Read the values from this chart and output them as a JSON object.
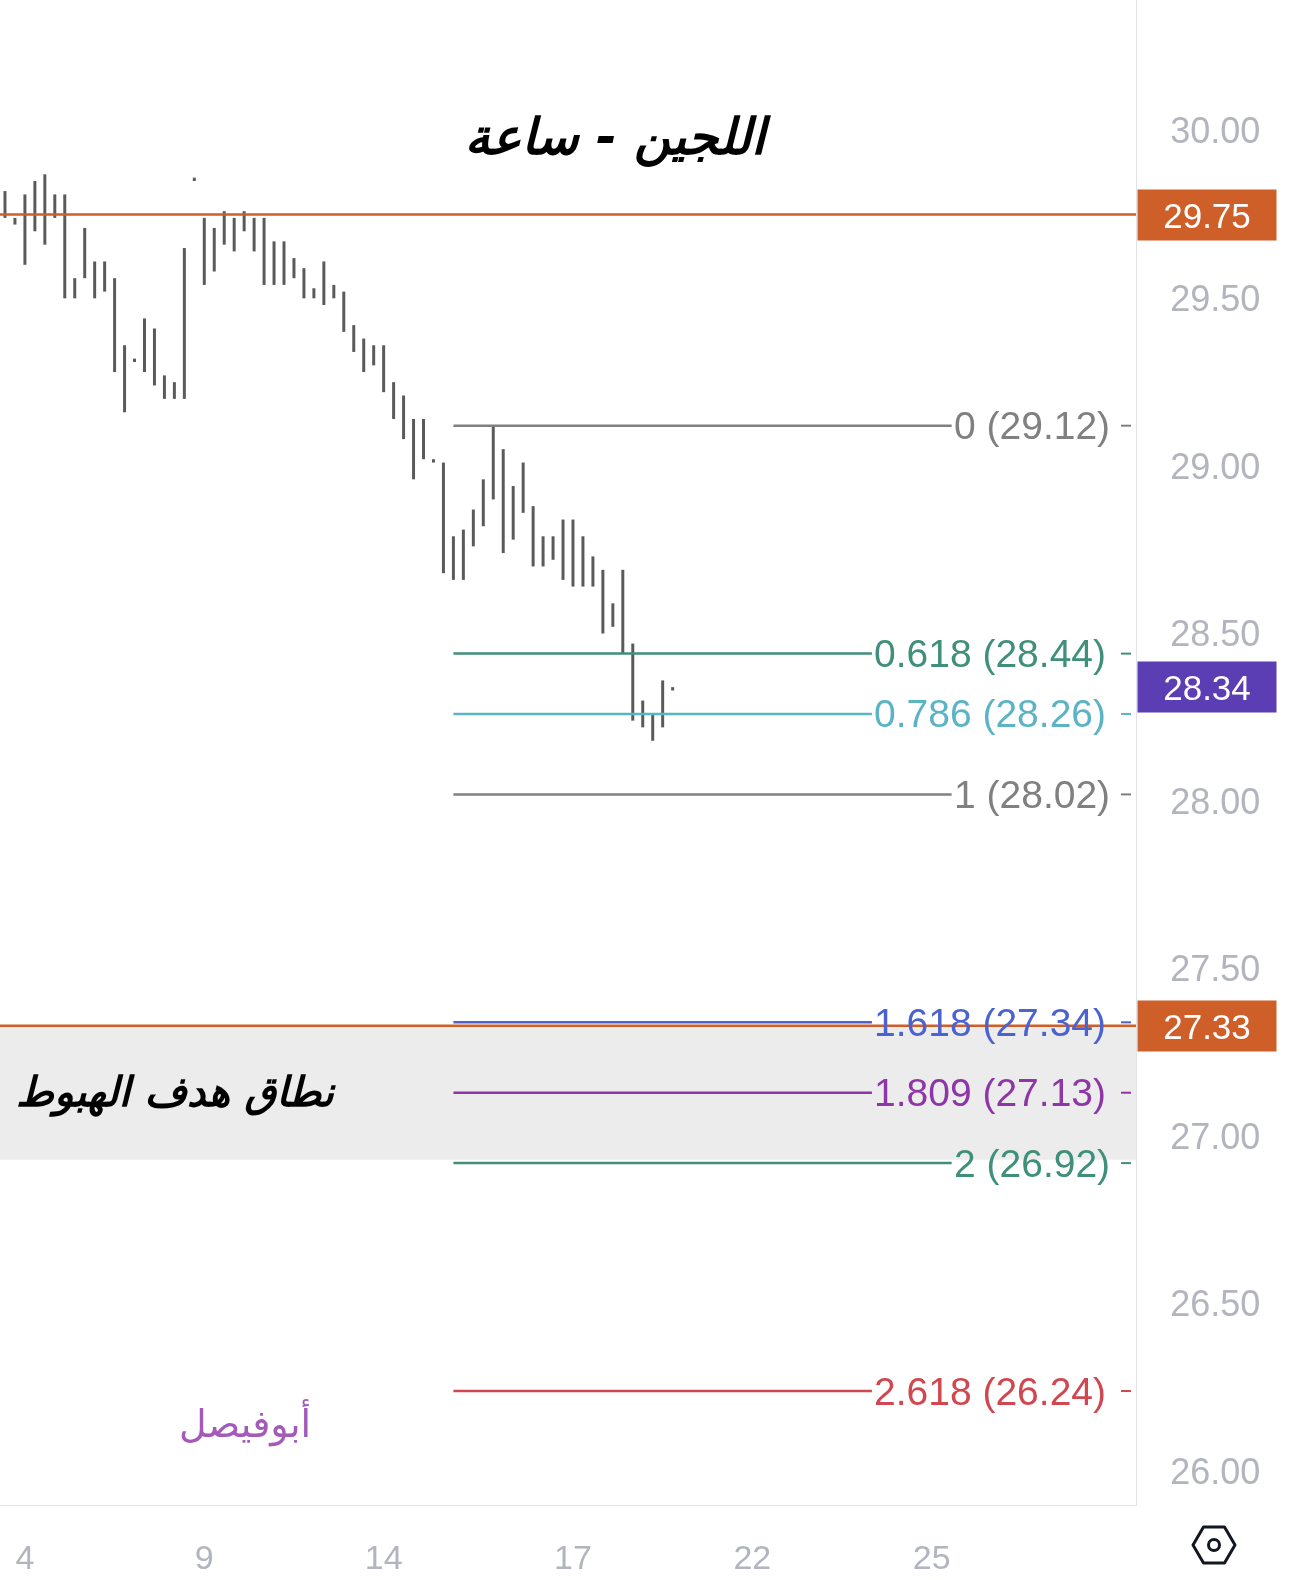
{
  "chart_data": {
    "type": "bar",
    "title": "اللجين - ساعة",
    "categories": [
      null,
      null,
      "4",
      null,
      null,
      null,
      null,
      null,
      null,
      null,
      null,
      null,
      null,
      null,
      null,
      null,
      null,
      null,
      null,
      null,
      "9",
      null,
      null,
      null,
      null,
      null,
      null,
      null,
      null,
      null,
      null,
      null,
      null,
      null,
      null,
      null,
      null,
      null,
      "14",
      null,
      null,
      null,
      null,
      null,
      null,
      null,
      null,
      null,
      null,
      null,
      null,
      null,
      null,
      null,
      null,
      null,
      null,
      "17",
      null,
      null,
      null,
      null,
      null,
      null,
      null,
      null,
      null,
      null,
      null,
      null,
      null,
      null,
      null,
      null,
      null,
      "22",
      null,
      null,
      null,
      null,
      null,
      null,
      null,
      null,
      null,
      null,
      null,
      null,
      null,
      null,
      null,
      null,
      null,
      "25",
      null,
      null,
      null,
      null,
      null,
      null,
      null,
      null,
      null,
      null,
      null,
      null,
      null,
      null,
      null,
      null,
      null,
      null,
      null,
      null
    ],
    "ylim": [
      25.9,
      30.39
    ],
    "yticks": [
      {
        "value": 26,
        "label": "26.00"
      },
      {
        "value": 26.5,
        "label": "26.50"
      },
      {
        "value": 27,
        "label": "27.00"
      },
      {
        "value": 27.5,
        "label": "27.50"
      },
      {
        "value": 28,
        "label": "28.00"
      },
      {
        "value": 28.5,
        "label": "28.50"
      },
      {
        "value": 29,
        "label": "29.00"
      },
      {
        "value": 29.5,
        "label": "29.50"
      },
      {
        "value": 30,
        "label": "30.00"
      }
    ],
    "legend": "right",
    "series": [
      {
        "color": "#5a5a5a",
        "base": [
          29.74,
          29.72,
          29.6,
          29.7,
          29.66,
          29.74,
          29.5,
          29.5,
          29.56,
          29.5,
          29.52,
          29.28,
          29.16,
          29.31,
          29.28,
          29.24,
          29.2,
          29.2,
          29.2,
          29.85,
          29.54,
          29.58,
          29.66,
          29.64,
          29.7,
          29.64,
          29.54,
          29.54,
          29.54,
          29.56,
          29.5,
          29.5,
          29.48,
          29.5,
          29.4,
          29.34,
          29.28,
          29.3,
          29.22,
          29.14,
          29.08,
          28.96,
          29.02,
          29.01,
          28.68,
          28.66,
          28.66,
          28.76,
          28.82,
          28.9,
          28.74,
          28.78,
          28.86,
          28.7,
          28.7,
          28.72,
          28.66,
          28.64,
          28.64,
          28.64,
          28.5,
          28.52,
          28.44,
          28.24,
          28.22,
          28.18,
          28.22,
          28.33,
          null,
          null,
          null,
          null,
          null,
          null,
          null,
          null,
          null,
          null,
          null,
          null,
          null,
          null,
          null,
          null,
          null,
          null,
          null,
          null,
          null,
          null,
          null,
          null,
          null,
          null,
          null,
          null,
          null,
          null,
          null,
          null,
          null,
          null,
          null,
          null,
          null,
          null,
          null,
          null,
          null,
          null,
          null,
          null,
          null,
          null
        ],
        "values": [
          0.08,
          0.02,
          0.21,
          0.15,
          0.21,
          0.07,
          0.31,
          0.06,
          0.15,
          0.11,
          0.09,
          0.28,
          0.2,
          0.01,
          0.16,
          0.17,
          0.07,
          0.05,
          0.45,
          0.01,
          0.2,
          0.13,
          0.1,
          0.1,
          0.06,
          0.1,
          0.2,
          0.13,
          0.13,
          0.06,
          0.09,
          0.03,
          0.13,
          0.04,
          0.12,
          0.08,
          0.1,
          0.06,
          0.14,
          0.11,
          0.13,
          0.18,
          0.12,
          0.01,
          0.33,
          0.13,
          0.15,
          0.11,
          0.14,
          0.22,
          0.31,
          0.16,
          0.15,
          0.18,
          0.09,
          0.07,
          0.18,
          0.2,
          0.15,
          0.09,
          0.19,
          0.07,
          0.25,
          0.23,
          0.08,
          0.08,
          0.14,
          0.01,
          null,
          null,
          null,
          null,
          null,
          null,
          null,
          null,
          null,
          null,
          null,
          null,
          null,
          null,
          null,
          null,
          null,
          null,
          null,
          null,
          null,
          null,
          null,
          null,
          null,
          null,
          null,
          null,
          null,
          null,
          null,
          null,
          null,
          null,
          null,
          null,
          null,
          null,
          null,
          null,
          null,
          null,
          null,
          null,
          null,
          null
        ]
      },
      {
        "type": "line",
        "name": "0 (29.12)",
        "color": "#808080",
        "values": [
          null,
          null,
          null,
          null,
          null,
          null,
          null,
          null,
          null,
          null,
          null,
          null,
          null,
          null,
          null,
          null,
          null,
          null,
          null,
          null,
          null,
          null,
          null,
          null,
          null,
          null,
          null,
          null,
          null,
          null,
          null,
          null,
          null,
          null,
          null,
          null,
          null,
          null,
          null,
          null,
          null,
          null,
          null,
          null,
          null,
          29.12,
          29.12,
          29.12,
          29.12,
          29.12,
          29.12,
          29.12,
          29.12,
          29.12,
          29.12,
          29.12,
          29.12,
          29.12,
          29.12,
          29.12,
          29.12,
          29.12,
          29.12,
          29.12,
          29.12,
          29.12,
          29.12,
          29.12,
          29.12,
          29.12,
          29.12,
          29.12,
          29.12,
          29.12,
          29.12,
          29.12,
          29.12,
          29.12,
          29.12,
          29.12,
          29.12,
          29.12,
          29.12,
          29.12,
          29.12,
          29.12,
          29.12,
          29.12,
          29.12,
          29.12,
          29.12,
          29.12,
          29.12,
          29.12,
          29.12,
          29.12,
          null,
          null,
          null,
          null,
          null,
          null,
          null,
          null,
          null,
          null,
          null,
          null,
          null,
          null,
          null,
          null,
          null,
          null
        ]
      },
      {
        "type": "line",
        "name": "0.618 (28.44)",
        "color": "#3f8f7a",
        "values": [
          null,
          null,
          null,
          null,
          null,
          null,
          null,
          null,
          null,
          null,
          null,
          null,
          null,
          null,
          null,
          null,
          null,
          null,
          null,
          null,
          null,
          null,
          null,
          null,
          null,
          null,
          null,
          null,
          null,
          null,
          null,
          null,
          null,
          null,
          null,
          null,
          null,
          null,
          null,
          null,
          null,
          null,
          null,
          null,
          null,
          28.44,
          28.44,
          28.44,
          28.44,
          28.44,
          28.44,
          28.44,
          28.44,
          28.44,
          28.44,
          28.44,
          28.44,
          28.44,
          28.44,
          28.44,
          28.44,
          28.44,
          28.44,
          28.44,
          28.44,
          28.44,
          28.44,
          28.44,
          28.44,
          28.44,
          28.44,
          28.44,
          28.44,
          28.44,
          28.44,
          28.44,
          28.44,
          28.44,
          28.44,
          28.44,
          28.44,
          28.44,
          28.44,
          28.44,
          28.44,
          28.44,
          28.44,
          28.44,
          null,
          null,
          null,
          null,
          null,
          null,
          null,
          null,
          null,
          null,
          null,
          null,
          null,
          null,
          null,
          null,
          null,
          null,
          null,
          null,
          null,
          null,
          null,
          null,
          null,
          null
        ]
      },
      {
        "type": "line",
        "name": "0.786 (28.26)",
        "color": "#5bb3c6",
        "values": [
          null,
          null,
          null,
          null,
          null,
          null,
          null,
          null,
          null,
          null,
          null,
          null,
          null,
          null,
          null,
          null,
          null,
          null,
          null,
          null,
          null,
          null,
          null,
          null,
          null,
          null,
          null,
          null,
          null,
          null,
          null,
          null,
          null,
          null,
          null,
          null,
          null,
          null,
          null,
          null,
          null,
          null,
          null,
          null,
          null,
          28.26,
          28.26,
          28.26,
          28.26,
          28.26,
          28.26,
          28.26,
          28.26,
          28.26,
          28.26,
          28.26,
          28.26,
          28.26,
          28.26,
          28.26,
          28.26,
          28.26,
          28.26,
          28.26,
          28.26,
          28.26,
          28.26,
          28.26,
          28.26,
          28.26,
          28.26,
          28.26,
          28.26,
          28.26,
          28.26,
          28.26,
          28.26,
          28.26,
          28.26,
          28.26,
          28.26,
          28.26,
          28.26,
          28.26,
          28.26,
          28.26,
          28.26,
          28.26,
          null,
          null,
          null,
          null,
          null,
          null,
          null,
          null,
          null,
          null,
          null,
          null,
          null,
          null,
          null,
          null,
          null,
          null,
          null,
          null,
          null,
          null,
          null,
          null,
          null,
          null
        ]
      },
      {
        "type": "line",
        "name": "1 (28.02)",
        "color": "#808080",
        "values": [
          null,
          null,
          null,
          null,
          null,
          null,
          null,
          null,
          null,
          null,
          null,
          null,
          null,
          null,
          null,
          null,
          null,
          null,
          null,
          null,
          null,
          null,
          null,
          null,
          null,
          null,
          null,
          null,
          null,
          null,
          null,
          null,
          null,
          null,
          null,
          null,
          null,
          null,
          null,
          null,
          null,
          null,
          null,
          null,
          null,
          28.02,
          28.02,
          28.02,
          28.02,
          28.02,
          28.02,
          28.02,
          28.02,
          28.02,
          28.02,
          28.02,
          28.02,
          28.02,
          28.02,
          28.02,
          28.02,
          28.02,
          28.02,
          28.02,
          28.02,
          28.02,
          28.02,
          28.02,
          28.02,
          28.02,
          28.02,
          28.02,
          28.02,
          28.02,
          28.02,
          28.02,
          28.02,
          28.02,
          28.02,
          28.02,
          28.02,
          28.02,
          28.02,
          28.02,
          28.02,
          28.02,
          28.02,
          28.02,
          28.02,
          28.02,
          28.02,
          28.02,
          28.02,
          28.02,
          28.02,
          28.02,
          null,
          null,
          null,
          null,
          null,
          null,
          null,
          null,
          null,
          null,
          null,
          null,
          null,
          null,
          null,
          null,
          null,
          null
        ]
      },
      {
        "type": "line",
        "name": "1.618 (27.34)",
        "color": "#4a63d0",
        "values": [
          null,
          null,
          null,
          null,
          null,
          null,
          null,
          null,
          null,
          null,
          null,
          null,
          null,
          null,
          null,
          null,
          null,
          null,
          null,
          null,
          null,
          null,
          null,
          null,
          null,
          null,
          null,
          null,
          null,
          null,
          null,
          null,
          null,
          null,
          null,
          null,
          null,
          null,
          null,
          null,
          null,
          null,
          null,
          null,
          null,
          27.34,
          27.34,
          27.34,
          27.34,
          27.34,
          27.34,
          27.34,
          27.34,
          27.34,
          27.34,
          27.34,
          27.34,
          27.34,
          27.34,
          27.34,
          27.34,
          27.34,
          27.34,
          27.34,
          27.34,
          27.34,
          27.34,
          27.34,
          27.34,
          27.34,
          27.34,
          27.34,
          27.34,
          27.34,
          27.34,
          27.34,
          27.34,
          27.34,
          27.34,
          27.34,
          27.34,
          27.34,
          27.34,
          27.34,
          27.34,
          27.34,
          27.34,
          27.34,
          null,
          null,
          null,
          null,
          null,
          null,
          null,
          null,
          null,
          null,
          null,
          null,
          null,
          null,
          null,
          null,
          null,
          null,
          null,
          null,
          null,
          null,
          null,
          null,
          null,
          null
        ]
      },
      {
        "type": "line",
        "name": "1.809 (27.13)",
        "color": "#8e36a8",
        "values": [
          null,
          null,
          null,
          null,
          null,
          null,
          null,
          null,
          null,
          null,
          null,
          null,
          null,
          null,
          null,
          null,
          null,
          null,
          null,
          null,
          null,
          null,
          null,
          null,
          null,
          null,
          null,
          null,
          null,
          null,
          null,
          null,
          null,
          null,
          null,
          null,
          null,
          null,
          null,
          null,
          null,
          null,
          null,
          null,
          null,
          27.13,
          27.13,
          27.13,
          27.13,
          27.13,
          27.13,
          27.13,
          27.13,
          27.13,
          27.13,
          27.13,
          27.13,
          27.13,
          27.13,
          27.13,
          27.13,
          27.13,
          27.13,
          27.13,
          27.13,
          27.13,
          27.13,
          27.13,
          27.13,
          27.13,
          27.13,
          27.13,
          27.13,
          27.13,
          27.13,
          27.13,
          27.13,
          27.13,
          27.13,
          27.13,
          27.13,
          27.13,
          27.13,
          27.13,
          27.13,
          27.13,
          27.13,
          27.13,
          null,
          null,
          null,
          null,
          null,
          null,
          null,
          null,
          null,
          null,
          null,
          null,
          null,
          null,
          null,
          null,
          null,
          null,
          null,
          null,
          null,
          null,
          null,
          null,
          null,
          null
        ]
      },
      {
        "type": "line",
        "name": "2 (26.92)",
        "color": "#3f8f7a",
        "values": [
          null,
          null,
          null,
          null,
          null,
          null,
          null,
          null,
          null,
          null,
          null,
          null,
          null,
          null,
          null,
          null,
          null,
          null,
          null,
          null,
          null,
          null,
          null,
          null,
          null,
          null,
          null,
          null,
          null,
          null,
          null,
          null,
          null,
          null,
          null,
          null,
          null,
          null,
          null,
          null,
          null,
          null,
          null,
          null,
          null,
          26.92,
          26.92,
          26.92,
          26.92,
          26.92,
          26.92,
          26.92,
          26.92,
          26.92,
          26.92,
          26.92,
          26.92,
          26.92,
          26.92,
          26.92,
          26.92,
          26.92,
          26.92,
          26.92,
          26.92,
          26.92,
          26.92,
          26.92,
          26.92,
          26.92,
          26.92,
          26.92,
          26.92,
          26.92,
          26.92,
          26.92,
          26.92,
          26.92,
          26.92,
          26.92,
          26.92,
          26.92,
          26.92,
          26.92,
          26.92,
          26.92,
          26.92,
          26.92,
          26.92,
          26.92,
          26.92,
          26.92,
          26.92,
          26.92,
          26.92,
          26.92,
          null,
          null,
          null,
          null,
          null,
          null,
          null,
          null,
          null,
          null,
          null,
          null,
          null,
          null,
          null,
          null,
          null,
          null
        ]
      },
      {
        "type": "line",
        "name": "2.618 (26.24)",
        "color": "#d0474f",
        "values": [
          null,
          null,
          null,
          null,
          null,
          null,
          null,
          null,
          null,
          null,
          null,
          null,
          null,
          null,
          null,
          null,
          null,
          null,
          null,
          null,
          null,
          null,
          null,
          null,
          null,
          null,
          null,
          null,
          null,
          null,
          null,
          null,
          null,
          null,
          null,
          null,
          null,
          null,
          null,
          null,
          null,
          null,
          null,
          null,
          null,
          26.24,
          26.24,
          26.24,
          26.24,
          26.24,
          26.24,
          26.24,
          26.24,
          26.24,
          26.24,
          26.24,
          26.24,
          26.24,
          26.24,
          26.24,
          26.24,
          26.24,
          26.24,
          26.24,
          26.24,
          26.24,
          26.24,
          26.24,
          26.24,
          26.24,
          26.24,
          26.24,
          26.24,
          26.24,
          26.24,
          26.24,
          26.24,
          26.24,
          26.24,
          26.24,
          26.24,
          26.24,
          26.24,
          26.24,
          26.24,
          26.24,
          26.24,
          26.24,
          null,
          null,
          null,
          null,
          null,
          null,
          null,
          null,
          null,
          null,
          null,
          null,
          null,
          null,
          null,
          null,
          null,
          null,
          null,
          null,
          null,
          null,
          null,
          null,
          null,
          null
        ]
      }
    ],
    "ref_lines": [
      {
        "axis": "y",
        "value": 29.75,
        "label": "29.75",
        "color": "#cf5f29"
      },
      {
        "axis": "y",
        "value": 27.33,
        "label": "27.33",
        "color": "#cf5f29"
      }
    ],
    "bands": [
      {
        "axis": "y",
        "from": 26.93,
        "to": 27.33,
        "label": "نطاق هدف الهبوط",
        "color": "#ececec"
      }
    ],
    "annotations": [
      "28.34",
      "أبوفيصل"
    ]
  }
}
